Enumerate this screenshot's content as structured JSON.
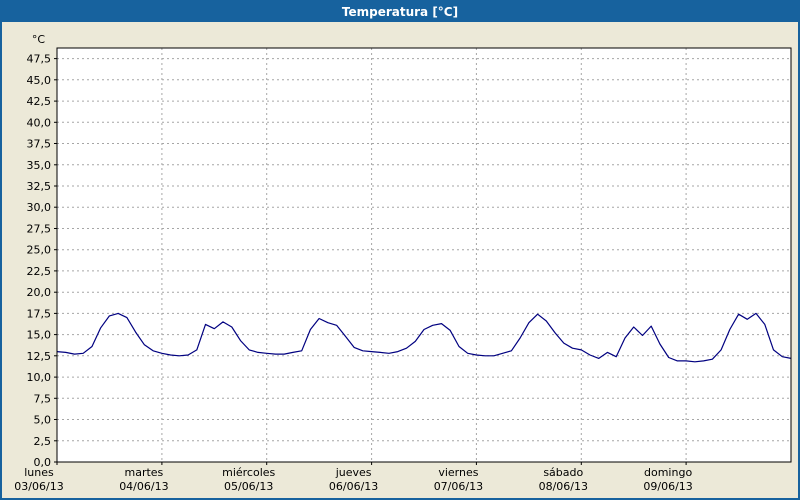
{
  "window": {
    "title": "Temperatura [°C]"
  },
  "colors": {
    "title_bar_bg": "#17629e",
    "window_bg": "#ece9d8",
    "plot_bg": "#ffffff",
    "grid": "#a6a6a6",
    "axis_border": "#000000",
    "line": "#000080"
  },
  "chart_data": {
    "type": "line",
    "title": "Temperatura [°C]",
    "legend": "none",
    "grid": "dashed",
    "y_axis": {
      "unit_label": "°C",
      "min": 0,
      "max": 48.75,
      "tick_step": 2.5,
      "tick_labels": [
        "47,5",
        "45,0",
        "42,5",
        "40,0",
        "37,5",
        "35,0",
        "32,5",
        "30,0",
        "27,5",
        "25,0",
        "22,5",
        "20,0",
        "17,5",
        "15,0",
        "12,5",
        "10,0",
        "7,5",
        "5,0",
        "2,5",
        "0,0"
      ]
    },
    "x_axis": {
      "days": [
        {
          "name": "lunes",
          "date": "03/06/13"
        },
        {
          "name": "martes",
          "date": "04/06/13"
        },
        {
          "name": "miércoles",
          "date": "05/06/13"
        },
        {
          "name": "jueves",
          "date": "06/06/13"
        },
        {
          "name": "viernes",
          "date": "07/06/13"
        },
        {
          "name": "sábado",
          "date": "08/06/13"
        },
        {
          "name": "domingo",
          "date": "09/06/13"
        }
      ]
    },
    "series": [
      {
        "name": "Temperatura",
        "color": "#000080",
        "points_per_day": 12,
        "sample_interval_hours": 2,
        "values": [
          13.0,
          12.9,
          12.7,
          12.8,
          13.6,
          15.8,
          17.2,
          17.5,
          17.0,
          15.3,
          13.8,
          13.1,
          12.8,
          12.6,
          12.5,
          12.6,
          13.2,
          16.2,
          15.7,
          16.5,
          15.9,
          14.3,
          13.2,
          12.9,
          12.8,
          12.7,
          12.7,
          12.9,
          13.1,
          15.6,
          16.9,
          16.4,
          16.1,
          14.8,
          13.5,
          13.1,
          13.0,
          12.9,
          12.8,
          13.0,
          13.4,
          14.2,
          15.6,
          16.1,
          16.3,
          15.5,
          13.6,
          12.8,
          12.6,
          12.5,
          12.5,
          12.8,
          13.1,
          14.6,
          16.4,
          17.4,
          16.6,
          15.2,
          14.0,
          13.4,
          13.2,
          12.6,
          12.2,
          12.9,
          12.4,
          14.6,
          15.9,
          14.9,
          16.0,
          13.9,
          12.3,
          11.9,
          11.9,
          11.8,
          11.9,
          12.1,
          13.2,
          15.6,
          17.4,
          16.8,
          17.5,
          16.2,
          13.2,
          12.4,
          12.2
        ]
      }
    ]
  }
}
